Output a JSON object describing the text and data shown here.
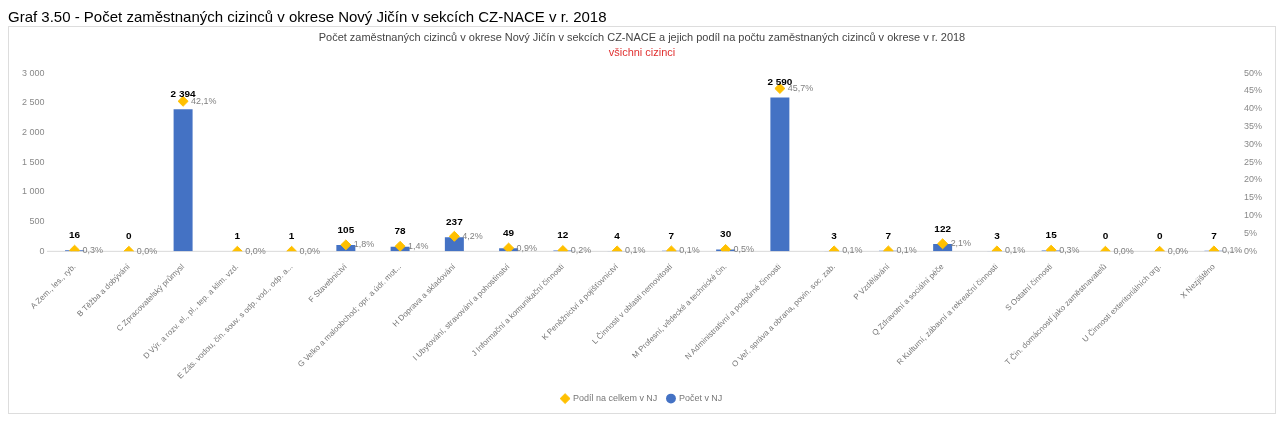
{
  "chart_data": {
    "type": "bar",
    "title": "Počet zaměstnaných cizinců v okrese Nový Jičín v sekcích CZ-NACE a jejich podíl na počtu zaměstnaných cizinců v okrese v r. 2018",
    "subtitle": "všichni cizinci",
    "annotations": [
      "Graf 3.50 - Počet zaměstnaných cizinců v okrese Nový Jičín v sekcích CZ-NACE v r. 2018"
    ],
    "categories": [
      "A Zem., les., ryb.",
      "B Těžba a dobývání",
      "C Zpracovatelský průmysl",
      "D Výr. a rozv. el., pl., tep. a klim. vzd.",
      "E Zás. vodou, čin. souv. s odp. vod., odp. a...",
      "F Stavebnictví",
      "G Velko a maloobchod; opr. a údr. mot...",
      "H Doprava a skladování",
      "I Ubytování, stravování a pohostinství",
      "J Informační a komunikační činnosti",
      "K Peněžnictví a pojišťovnictví",
      "L Činnosti v oblasti nemovitostí",
      "M Profesní, vědecké a technické čin.",
      "N Administrativní a podpůrné činnosti",
      "O Veř. správa a obrana, povin. soc. zab.",
      "P Vzdělávání",
      "Q Zdravotní a sociální péče",
      "R Kulturní, zábavní a rekreační činnosti",
      "S Ostatní činnosti",
      "T Čin. domácností jako zaměstnavatelů",
      "U Činnosti exteritoriálních org.",
      "X Nezjištěno"
    ],
    "series": [
      {
        "name": "Počet v NJ",
        "color": "#4472c4",
        "values": [
          16,
          0,
          2394,
          1,
          1,
          105,
          78,
          237,
          49,
          12,
          4,
          7,
          30,
          2590,
          3,
          7,
          122,
          3,
          15,
          0,
          0,
          7
        ],
        "value_labels": [
          "16",
          "0",
          "2 394",
          "1",
          "1",
          "105",
          "78",
          "237",
          "49",
          "12",
          "4",
          "7",
          "30",
          "2 590",
          "3",
          "7",
          "122",
          "3",
          "15",
          "0",
          "0",
          "7"
        ]
      },
      {
        "name": "Podíl na celkem v NJ",
        "type": "scatter",
        "axis": "y2",
        "marker": "diamond",
        "color": "#ffc000",
        "x": [
          "A Zem., les., ryb.",
          "B Těžba a dobývání",
          "C Zpracovatelský průmysl",
          "D Výr. a rozv. el., pl., tep. a klim. vzd.",
          "E Zás. vodou, čin. souv. s odp. vod., odp. a...",
          "F Stavebnictví",
          "G Velko a maloobchod; opr. a údr. mot...",
          "H Doprava a skladování",
          "I Ubytování, stravování a pohostinství",
          "J Informační a komunikační činnosti",
          "K Peněžnictví a pojišťovnictví",
          "L Činnosti v oblasti nemovitostí",
          "M Profesní, vědecké a technické čin.",
          "N Administrativní a podpůrné činnosti",
          "O Veř. správa a obrana, povin. soc. zab.",
          "P Vzdělávání",
          "Q Zdravotní a sociální péče",
          "R Kulturní, zábavní a rekreační činnosti",
          "S Ostatní činnosti",
          "T Čin. domácností jako zaměstnavatelů",
          "U Činnosti exteritoriálních org.",
          "X Nezjištěno"
        ],
        "values": [
          0.3,
          0.0,
          42.1,
          0.0,
          0.0,
          1.8,
          1.4,
          4.2,
          0.9,
          0.2,
          0.1,
          0.1,
          0.5,
          45.7,
          0.1,
          0.1,
          2.1,
          0.1,
          0.3,
          0.0,
          0.0,
          0.1
        ],
        "value_labels": [
          "0,3%",
          "0,0%",
          "42,1%",
          "0,0%",
          "0,0%",
          "1,8%",
          "1,4%",
          "4,2%",
          "0,9%",
          "0,2%",
          "0,1%",
          "0,1%",
          "0,5%",
          "45,7%",
          "0,1%",
          "0,1%",
          "2,1%",
          "0,1%",
          "0,3%",
          "0,0%",
          "0,0%",
          "0,1%"
        ]
      }
    ],
    "ylim": [
      0,
      3000
    ],
    "yticks": [
      {
        "value": 0,
        "label": "0"
      },
      {
        "value": 500,
        "label": "500"
      },
      {
        "value": 1000,
        "label": "1 000"
      },
      {
        "value": 1500,
        "label": "1 500"
      },
      {
        "value": 2000,
        "label": "2 000"
      },
      {
        "value": 2500,
        "label": "2 500"
      },
      {
        "value": 3000,
        "label": "3 000"
      }
    ],
    "y2lim": [
      0,
      50
    ],
    "y2ticks": [
      {
        "value": 0,
        "label": "0%"
      },
      {
        "value": 5,
        "label": "5%"
      },
      {
        "value": 10,
        "label": "10%"
      },
      {
        "value": 15,
        "label": "15%"
      },
      {
        "value": 20,
        "label": "20%"
      },
      {
        "value": 25,
        "label": "25%"
      },
      {
        "value": 30,
        "label": "30%"
      },
      {
        "value": 35,
        "label": "35%"
      },
      {
        "value": 40,
        "label": "40%"
      },
      {
        "value": 45,
        "label": "45%"
      },
      {
        "value": 50,
        "label": "50%"
      }
    ],
    "legend": "bottom"
  }
}
